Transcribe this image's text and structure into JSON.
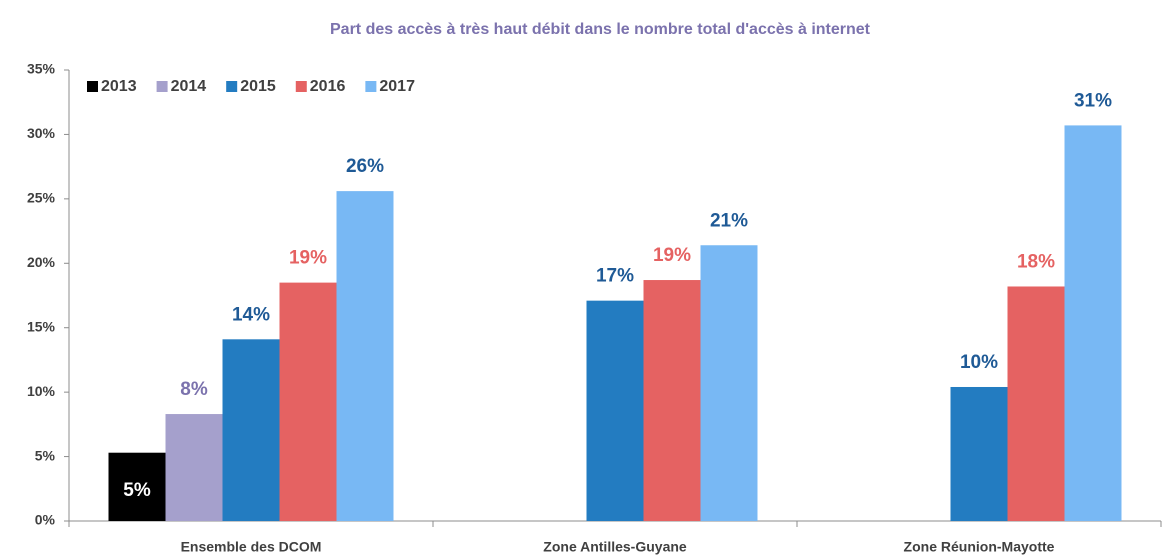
{
  "chart_data": {
    "type": "bar",
    "title": "Part des accès à très haut débit dans le nombre total d'accès à internet",
    "categories": [
      "Ensemble des DCOM",
      "Zone Antilles-Guyane",
      "Zone Réunion-Mayotte"
    ],
    "series": [
      {
        "name": "2013",
        "color": "#000000",
        "label_color": "#ffffff",
        "label_position": "inside",
        "values": [
          5.3,
          null,
          null
        ],
        "value_labels": [
          "5%",
          null,
          null
        ]
      },
      {
        "name": "2014",
        "color": "#a5a0cc",
        "label_color": "#7b72ad",
        "label_position": "above",
        "values": [
          8.3,
          null,
          null
        ],
        "value_labels": [
          "8%",
          null,
          null
        ]
      },
      {
        "name": "2015",
        "color": "#237cc1",
        "label_color": "#1f5a96",
        "label_position": "above",
        "values": [
          14.1,
          17.1,
          10.4
        ],
        "value_labels": [
          "14%",
          "17%",
          "10%"
        ]
      },
      {
        "name": "2016",
        "color": "#e56262",
        "label_color": "#e56262",
        "label_position": "above",
        "values": [
          18.5,
          18.7,
          18.2
        ],
        "value_labels": [
          "19%",
          "19%",
          "18%"
        ]
      },
      {
        "name": "2017",
        "color": "#78b8f4",
        "label_color": "#1f5a96",
        "label_position": "above",
        "values": [
          25.6,
          21.4,
          30.7
        ],
        "value_labels": [
          "26%",
          "21%",
          "31%"
        ]
      }
    ],
    "ylim": [
      0,
      35
    ],
    "yticks": [
      {
        "value": 0,
        "label": "0%"
      },
      {
        "value": 5,
        "label": "5%"
      },
      {
        "value": 10,
        "label": "10%"
      },
      {
        "value": 15,
        "label": "15%"
      },
      {
        "value": 20,
        "label": "20%"
      },
      {
        "value": 25,
        "label": "25%"
      },
      {
        "value": 30,
        "label": "30%"
      },
      {
        "value": 35,
        "label": "35%"
      }
    ],
    "grid": false,
    "legend": "top-left"
  }
}
